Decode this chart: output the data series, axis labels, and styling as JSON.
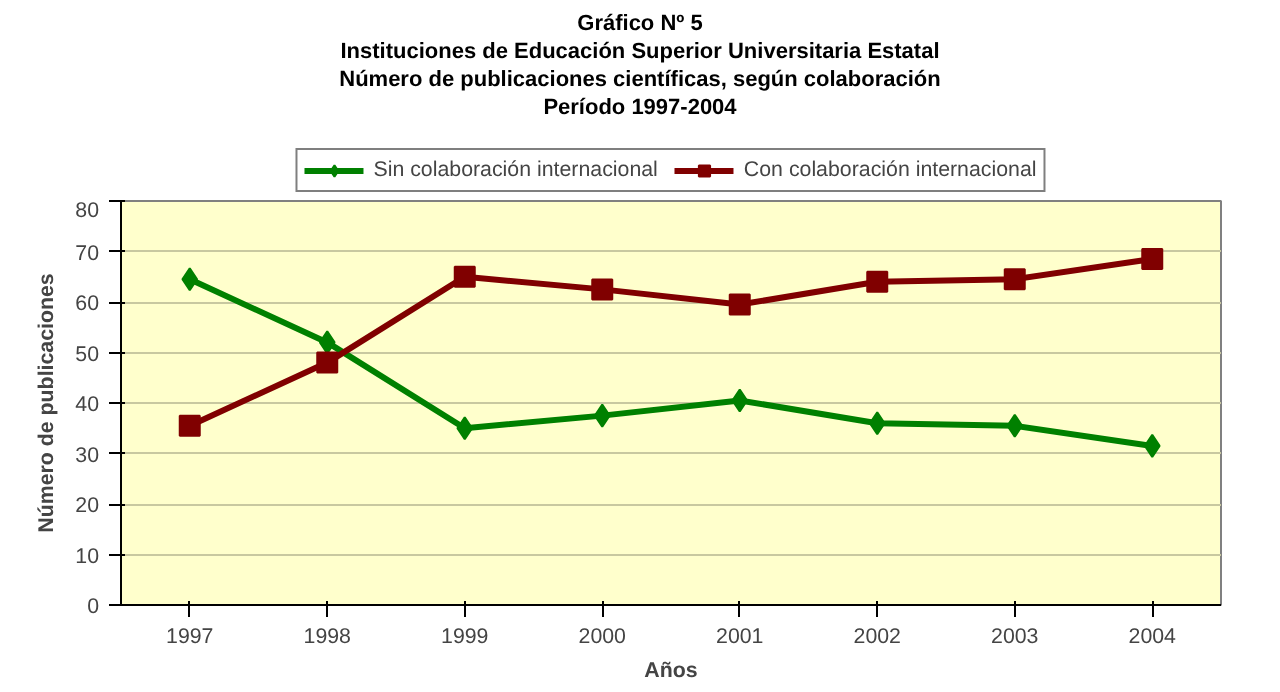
{
  "chart_data": {
    "type": "line",
    "title": "Gráfico Nº 5",
    "subtitle": "Instituciones de Educación Superior Universitaria Estatal\nNúmero de publicaciones científicas, según colaboración\nPeríodo 1997-2004",
    "xlabel": "Años",
    "ylabel": "Número de publicaciones",
    "categories": [
      "1997",
      "1998",
      "1999",
      "2000",
      "2001",
      "2002",
      "2003",
      "2004"
    ],
    "series": [
      {
        "name": "Sin colaboración internacional",
        "color": "#008000",
        "marker": "diamond",
        "values": [
          64.5,
          52,
          35,
          37.5,
          40.5,
          36,
          35.5,
          31.5
        ]
      },
      {
        "name": "Con colaboración internacional",
        "color": "#800000",
        "marker": "square",
        "values": [
          35.5,
          48,
          65,
          62.5,
          59.5,
          64,
          64.5,
          68.5
        ]
      }
    ],
    "ylim": [
      0,
      80
    ],
    "yticks": [
      0,
      10,
      20,
      30,
      40,
      50,
      60,
      70,
      80
    ],
    "grid": "y",
    "legend": "top",
    "line_style": "solid"
  }
}
